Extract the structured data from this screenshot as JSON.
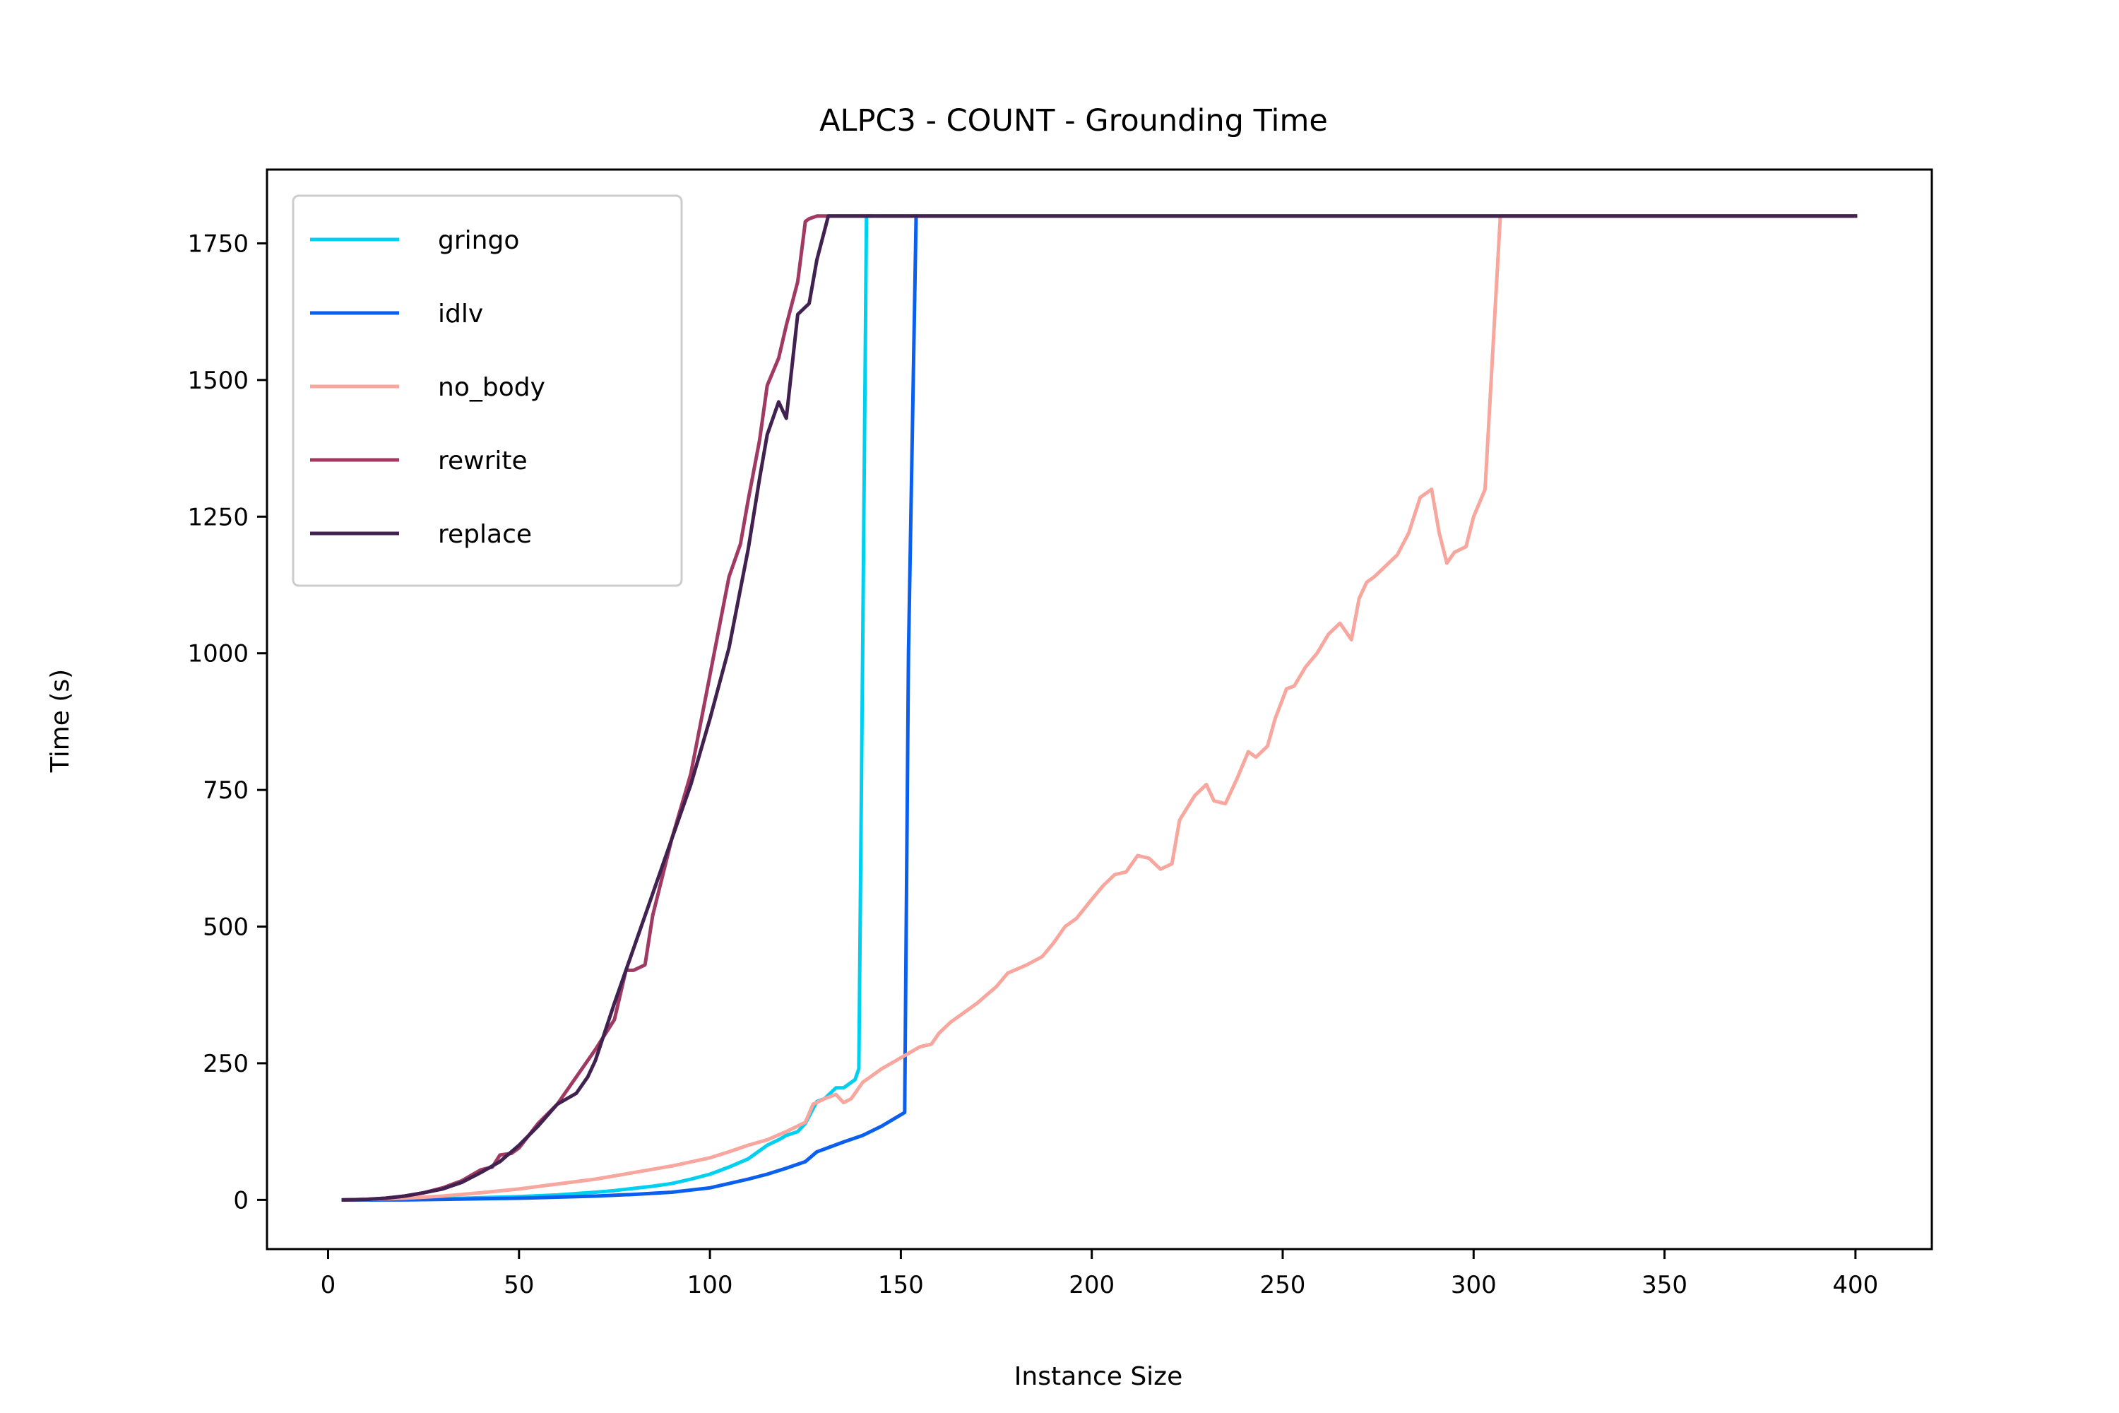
{
  "chart_data": {
    "type": "line",
    "title": "ALPC3 - COUNT - Grounding Time",
    "xlabel": "Instance Size",
    "ylabel": "Time (s)",
    "xlim": [
      -16,
      420
    ],
    "ylim": [
      -90,
      1885
    ],
    "xticks": [
      0,
      50,
      100,
      150,
      200,
      250,
      300,
      350,
      400
    ],
    "yticks": [
      0,
      250,
      500,
      750,
      1000,
      1250,
      1500,
      1750
    ],
    "grid": false,
    "legend": "upper-left",
    "series": [
      {
        "name": "gringo",
        "color": "#00d0f0",
        "x": [
          4,
          10,
          20,
          30,
          40,
          50,
          60,
          70,
          75,
          80,
          85,
          90,
          95,
          100,
          105,
          110,
          115,
          118,
          120,
          123,
          125,
          128,
          130,
          133,
          135,
          138,
          139,
          140,
          141,
          142
        ],
        "y": [
          0,
          0,
          1,
          2,
          4,
          6,
          9,
          14,
          17,
          21,
          25,
          30,
          38,
          47,
          60,
          75,
          100,
          110,
          118,
          125,
          140,
          180,
          185,
          205,
          205,
          220,
          240,
          1000,
          1800,
          1800
        ]
      },
      {
        "name": "idlv",
        "color": "#0a5fef",
        "x": [
          4,
          10,
          20,
          30,
          40,
          50,
          60,
          70,
          80,
          90,
          100,
          105,
          110,
          115,
          120,
          125,
          128,
          130,
          135,
          140,
          145,
          151,
          152,
          154
        ],
        "y": [
          0,
          0,
          0,
          1,
          2,
          3,
          5,
          7,
          10,
          14,
          22,
          30,
          38,
          47,
          58,
          70,
          88,
          93,
          106,
          118,
          135,
          160,
          1000,
          1800
        ]
      },
      {
        "name": "no_body",
        "color": "#f7a79e",
        "x": [
          4,
          10,
          20,
          30,
          40,
          50,
          60,
          70,
          80,
          90,
          100,
          105,
          110,
          115,
          120,
          125,
          127,
          130,
          133,
          135,
          137,
          140,
          145,
          150,
          155,
          158,
          160,
          163,
          166,
          170,
          175,
          178,
          183,
          187,
          190,
          193,
          196,
          200,
          203,
          206,
          209,
          212,
          215,
          218,
          221,
          223,
          227,
          230,
          232,
          235,
          238,
          241,
          243,
          246,
          248,
          251,
          253,
          256,
          259,
          262,
          265,
          268,
          270,
          272,
          274,
          277,
          280,
          283,
          286,
          289,
          291,
          293,
          295,
          298,
          300,
          303,
          305,
          307,
          310,
          320,
          340,
          360,
          380,
          400
        ],
        "y": [
          0,
          1,
          3,
          7,
          13,
          20,
          29,
          38,
          50,
          62,
          77,
          88,
          100,
          110,
          125,
          142,
          175,
          185,
          193,
          178,
          185,
          215,
          240,
          260,
          280,
          285,
          305,
          325,
          340,
          360,
          390,
          415,
          430,
          445,
          470,
          500,
          515,
          550,
          575,
          595,
          600,
          630,
          625,
          605,
          615,
          695,
          740,
          760,
          730,
          725,
          770,
          820,
          810,
          830,
          880,
          935,
          940,
          975,
          1000,
          1035,
          1055,
          1025,
          1100,
          1130,
          1140,
          1160,
          1180,
          1220,
          1285,
          1300,
          1220,
          1165,
          1185,
          1195,
          1250,
          1300,
          1550,
          1800,
          1800,
          1800,
          1800,
          1800,
          1800,
          1800
        ]
      },
      {
        "name": "rewrite",
        "color": "#a03a62",
        "x": [
          4,
          10,
          15,
          20,
          25,
          30,
          35,
          40,
          43,
          45,
          48,
          50,
          55,
          60,
          65,
          70,
          75,
          78,
          80,
          83,
          85,
          90,
          95,
          100,
          105,
          108,
          110,
          113,
          115,
          118,
          120,
          123,
          125,
          126,
          128,
          130,
          140,
          160,
          200,
          250,
          300,
          350,
          400
        ],
        "y": [
          0,
          1,
          3,
          7,
          13,
          22,
          35,
          55,
          60,
          82,
          85,
          95,
          140,
          175,
          225,
          275,
          330,
          420,
          420,
          430,
          520,
          660,
          780,
          960,
          1140,
          1200,
          1280,
          1390,
          1490,
          1540,
          1600,
          1680,
          1790,
          1795,
          1800,
          1800,
          1800,
          1800,
          1800,
          1800,
          1800,
          1800,
          1800
        ]
      },
      {
        "name": "replace",
        "color": "#41214f",
        "x": [
          4,
          10,
          15,
          20,
          25,
          30,
          35,
          40,
          45,
          50,
          55,
          60,
          65,
          68,
          70,
          75,
          80,
          85,
          90,
          95,
          100,
          105,
          110,
          113,
          115,
          118,
          120,
          123,
          126,
          128,
          131,
          135,
          150,
          200,
          250,
          300,
          350,
          400
        ],
        "y": [
          0,
          1,
          3,
          7,
          13,
          20,
          32,
          50,
          70,
          100,
          135,
          175,
          195,
          225,
          255,
          360,
          460,
          560,
          660,
          760,
          880,
          1010,
          1190,
          1320,
          1400,
          1460,
          1430,
          1620,
          1640,
          1720,
          1800,
          1800,
          1800,
          1800,
          1800,
          1800,
          1800,
          1800
        ]
      }
    ]
  }
}
